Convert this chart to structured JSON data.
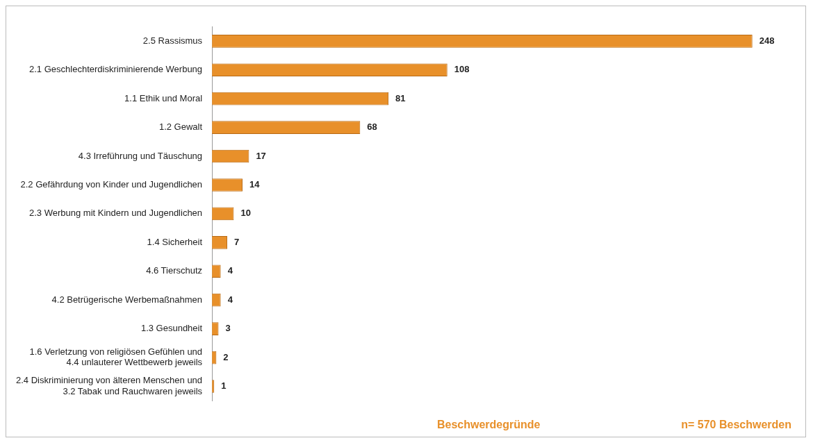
{
  "chart_data": {
    "type": "bar",
    "orientation": "horizontal",
    "categories": [
      "2.5 Rassismus",
      "2.1 Geschlechterdiskriminierende Werbung",
      "1.1 Ethik und Moral",
      "1.2 Gewalt",
      "4.3 Irreführung und Täuschung",
      "2.2 Gefährdung von Kinder und Jugendlichen",
      "2.3 Werbung mit Kindern und Jugendlichen",
      "1.4 Sicherheit",
      "4.6 Tierschutz",
      "4.2 Betrügerische Werbemaßnahmen",
      "1.3 Gesundheit",
      "1.6 Verletzung von religiösen Gefühlen und\n4.4 unlauterer Wettbewerb jeweils",
      "2.4 Diskriminierung von älteren Menschen und\n3.2 Tabak und Rauchwaren jeweils"
    ],
    "values": [
      248,
      108,
      81,
      68,
      17,
      14,
      10,
      7,
      4,
      4,
      3,
      2,
      1
    ],
    "color": "#e8902a",
    "data_labels": true,
    "legend": false,
    "annotations": [
      "Beschwerdegründe",
      "n= 570 Beschwerden"
    ]
  }
}
